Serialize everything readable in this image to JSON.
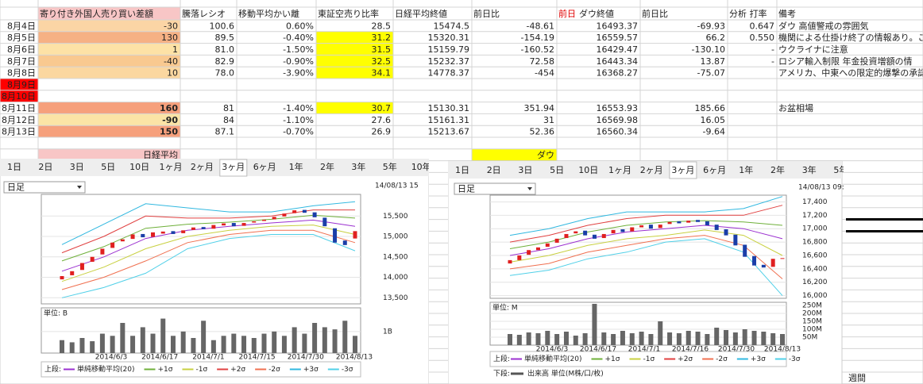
{
  "table": {
    "header": [
      {
        "text": "寄り付き外国人売り買い差額",
        "fill": "#f8c6c6",
        "color": "#e00000"
      },
      "騰落レシオ",
      "移動平均かい離",
      "東証空売り比率",
      "日経平均終値",
      "前日比",
      {
        "parts": [
          {
            "text": "前日",
            "color": "#e00000"
          },
          {
            "text": "ダウ終値"
          }
        ]
      },
      "前日比",
      "分析 打率",
      "備考"
    ],
    "rows": [
      {
        "label": "8月4日",
        "cells": [
          {
            "text": "-30",
            "fill": "#fbd5a5",
            "color": "#666666"
          },
          "100.6",
          "0.60%",
          "28.5",
          "15474.5",
          {
            "text": "-48.61",
            "color": "#1a9bc0"
          },
          "16493.37",
          {
            "text": "-69.93",
            "color": "#1a9bc0"
          },
          "0.647",
          "ダウ 高値警戒の雰囲気"
        ]
      },
      {
        "label": "8月5日",
        "cells": [
          {
            "text": "130",
            "fill": "#f6b184",
            "color": "#a00000"
          },
          "89.5",
          "-0.40%",
          {
            "text": "31.2",
            "fill": "#ffff00"
          },
          "15320.31",
          {
            "text": "-154.19",
            "color": "#1a9bc0"
          },
          "16559.57",
          {
            "text": "66.2",
            "color": "#e02020"
          },
          "0.550",
          "機関による仕掛け終了の情報あり。こ"
        ]
      },
      {
        "label": "8月6日",
        "cells": [
          {
            "text": "1",
            "fill": "#fde2a6",
            "color": "#666666"
          },
          "81.0",
          "-1.50%",
          {
            "text": "31.5",
            "fill": "#ffff00"
          },
          "15159.79",
          {
            "text": "-160.52",
            "color": "#1a9bc0"
          },
          "16429.47",
          {
            "text": "-130.10",
            "color": "#1a9bc0"
          },
          "-",
          "ウクライナに注意"
        ]
      },
      {
        "label": "8月7日",
        "cells": [
          {
            "text": "-40",
            "fill": "#f9c990",
            "color": "#666666"
          },
          "82.9",
          "-0.90%",
          {
            "text": "32.5",
            "fill": "#ffff00"
          },
          "15232.37",
          {
            "text": "72.58",
            "color": "#e02020"
          },
          "16443.34",
          {
            "text": "13.87",
            "color": "#e02020"
          },
          "-",
          "ロシア輸入制限 年金投資増額の情"
        ]
      },
      {
        "label": "8月8日",
        "cells": [
          {
            "text": "10",
            "fill": "#fbd7a0",
            "color": "#666666"
          },
          "78.0",
          "-3.90%",
          {
            "text": "34.1",
            "fill": "#ffff00"
          },
          "14778.37",
          {
            "text": "-454",
            "color": "#1a9bc0"
          },
          "16368.27",
          {
            "text": "-75.07",
            "color": "#1a9bc0"
          },
          null,
          "アメリカ、中東への限定的爆撃の承認"
        ]
      },
      {
        "label": "8月9日",
        "label_fill": "#ff0000",
        "cells": []
      },
      {
        "label": "8月10日",
        "label_fill": "#ff0000",
        "cells": []
      },
      {
        "label": "8月11日",
        "cells": [
          {
            "text": "160",
            "fill": "#f6a07c",
            "color": "#e00000",
            "bold": true
          },
          "81",
          "-1.40%",
          {
            "text": "30.7",
            "fill": "#ffff00"
          },
          "15130.31",
          {
            "text": "351.94",
            "color": "#e02020"
          },
          "16553.93",
          {
            "text": "185.66",
            "color": "#e02020"
          },
          null,
          "お盆相場"
        ]
      },
      {
        "label": "8月12日",
        "cells": [
          {
            "text": "-90",
            "fill": "#fbe4a6",
            "color": "#1a1aa0",
            "bold": true
          },
          "84",
          "-1.10%",
          "27.6",
          "15161.31",
          {
            "text": "31",
            "color": "#e02020"
          },
          "16569.98",
          {
            "text": "16.05",
            "color": "#e02020"
          }
        ]
      },
      {
        "label": "8月13日",
        "cells": [
          {
            "text": "150",
            "fill": "#f6a07c",
            "color": "#e00000",
            "bold": true
          },
          "87.1",
          "-0.70%",
          "26.9",
          "15213.67",
          {
            "text": "52.36",
            "color": "#e02020"
          },
          "16560.34",
          {
            "text": "-9.64",
            "color": "#1a9bc0"
          }
        ]
      },
      {
        "cells": []
      },
      {
        "cells": [
          {
            "text": "日経平均",
            "fill": "#f8c6c6",
            "color": "#e00000"
          },
          null,
          null,
          null,
          null,
          {
            "text": "ダウ",
            "fill": "#ffff00",
            "color": "#e00000"
          }
        ]
      }
    ]
  },
  "other_text": "週間",
  "chart_data": [
    {
      "type": "candlestick",
      "tabs": [
        {
          "label": "1日"
        },
        {
          "label": "2日"
        },
        {
          "label": "3日"
        },
        {
          "label": "5日"
        },
        {
          "label": "10日"
        },
        {
          "label": "1ヶ月"
        },
        {
          "label": "2ヶ月"
        },
        {
          "label": "3ヶ月",
          "selected": true
        },
        {
          "label": "6ヶ月"
        },
        {
          "label": "1年"
        },
        {
          "label": "2年"
        },
        {
          "label": "3年"
        },
        {
          "label": "5年"
        },
        {
          "label": "10年"
        }
      ],
      "interval": "日足",
      "timestamp": "14/08/13 15",
      "ylim": [
        13350,
        16030
      ],
      "yticks": [
        {
          "value": 15500,
          "label": "15,500"
        },
        {
          "value": 15000,
          "label": "15,000"
        },
        {
          "value": 14500,
          "label": "14,500"
        },
        {
          "value": 14000,
          "label": "14,000"
        },
        {
          "value": 13500,
          "label": "13,500"
        }
      ],
      "up_color": "#e02020",
      "down_color": "#1a3ea8",
      "open": [
        13950,
        14050,
        14180,
        14380,
        14560,
        14720,
        14880,
        14940,
        15060,
        14990,
        15070,
        15130,
        15080,
        15160,
        15230,
        15190,
        15270,
        15330,
        15260,
        15340,
        15380,
        15420,
        15490,
        15570,
        15650,
        15590,
        15460,
        15200,
        14900,
        14950
      ],
      "close": [
        14030,
        14150,
        14350,
        14500,
        14700,
        14850,
        14930,
        15050,
        14980,
        15100,
        15120,
        15060,
        15150,
        15220,
        15180,
        15280,
        15320,
        15250,
        15330,
        15370,
        15410,
        15480,
        15560,
        15640,
        15580,
        15470,
        15250,
        14850,
        14790,
        15130
      ],
      "series": [
        {
          "name": "単純移動平均(20)",
          "color": "#9b30d0",
          "values": [
            14150,
            14500,
            14950,
            15150,
            15250,
            15330,
            15400,
            15250
          ]
        },
        {
          "name": "+1σ",
          "color": "#6fb03a",
          "values": [
            14400,
            14750,
            15200,
            15300,
            15350,
            15420,
            15520,
            15450
          ]
        },
        {
          "name": "-1σ",
          "color": "#c8d040",
          "values": [
            13900,
            14250,
            14700,
            15000,
            15150,
            15250,
            15280,
            15050
          ]
        },
        {
          "name": "+2σ",
          "color": "#e04040",
          "values": [
            14600,
            15000,
            15500,
            15450,
            15450,
            15500,
            15650,
            15650
          ]
        },
        {
          "name": "-2σ",
          "color": "#f07050",
          "values": [
            13700,
            14000,
            14400,
            14850,
            15050,
            15150,
            15150,
            14850
          ]
        },
        {
          "name": "+3σ",
          "color": "#30b8e0",
          "values": [
            14800,
            15300,
            15800,
            15700,
            15600,
            15600,
            15750,
            15850
          ]
        },
        {
          "name": "-3σ",
          "color": "#50d0e8",
          "values": [
            13500,
            13750,
            14100,
            14700,
            14950,
            15050,
            15050,
            14650
          ]
        }
      ],
      "legend_prefix": "上段:",
      "volume": {
        "unit_label": "単位: B",
        "color": "#666666",
        "ylim": [
          0,
          2.1
        ],
        "yticks": [
          {
            "value": 1,
            "label": "1B"
          }
        ],
        "values": [
          0.6,
          0.5,
          0.7,
          0.55,
          0.9,
          0.8,
          1.4,
          0.8,
          1.2,
          0.9,
          1.6,
          0.8,
          1.0,
          0.7,
          1.5,
          0.6,
          0.8,
          0.9,
          0.8,
          0.7,
          0.9,
          1.0,
          0.8,
          1.2,
          0.9,
          1.4,
          1.2,
          1.1,
          1.5,
          0.8
        ]
      },
      "x_labels": [
        "2014/6/3",
        "2014/6/17",
        "2014/7/1",
        "2014/7/15",
        "2014/7/30",
        "2014/8/13"
      ]
    },
    {
      "type": "candlestick",
      "tabs": [
        {
          "label": "1日"
        },
        {
          "label": "2日"
        },
        {
          "label": "3日"
        },
        {
          "label": "5日"
        },
        {
          "label": "10日"
        },
        {
          "label": "1ヶ月"
        },
        {
          "label": "2ヶ月"
        },
        {
          "label": "3ヶ月",
          "selected": true
        },
        {
          "label": "6ヶ月"
        },
        {
          "label": "1年"
        },
        {
          "label": "2年"
        },
        {
          "label": "3年"
        },
        {
          "label": "5年"
        },
        {
          "label": "10年"
        }
      ],
      "interval": "日足",
      "timestamp": "14/08/13 09:3",
      "ylim": [
        15960,
        17500
      ],
      "yticks": [
        {
          "value": 17400,
          "label": "17,400"
        },
        {
          "value": 17200,
          "label": "17,200"
        },
        {
          "value": 17000,
          "label": "17,000"
        },
        {
          "value": 16800,
          "label": "16,800"
        },
        {
          "value": 16600,
          "label": "16,600"
        },
        {
          "value": 16400,
          "label": "16,400"
        },
        {
          "value": 16200,
          "label": "16,200"
        },
        {
          "value": 16000,
          "label": "16,000"
        }
      ],
      "up_color": "#e02020",
      "down_color": "#1a3ea8",
      "open": [
        16480,
        16530,
        16610,
        16680,
        16730,
        16790,
        16860,
        16930,
        16970,
        16910,
        16860,
        16930,
        16990,
        16960,
        17020,
        17060,
        17010,
        17070,
        17110,
        17090,
        17130,
        17110,
        17060,
        16990,
        16910,
        16760,
        16590,
        16460,
        16430,
        16560
      ],
      "close": [
        16530,
        16600,
        16680,
        16720,
        16780,
        16850,
        16920,
        16960,
        16900,
        16850,
        16920,
        16980,
        16950,
        17020,
        17050,
        17000,
        17060,
        17100,
        17080,
        17120,
        17100,
        17050,
        16980,
        16900,
        16750,
        16580,
        16450,
        16420,
        16550,
        16560
      ],
      "series": [
        {
          "name": "単純移動平均(20)",
          "color": "#9b30d0",
          "values": [
            16600,
            16700,
            16850,
            16950,
            17000,
            17050,
            17000,
            16850
          ]
        },
        {
          "name": "+1σ",
          "color": "#6fb03a",
          "values": [
            16700,
            16800,
            16950,
            17050,
            17100,
            17120,
            17100,
            17050
          ]
        },
        {
          "name": "-1σ",
          "color": "#c8d040",
          "values": [
            16500,
            16600,
            16750,
            16850,
            16900,
            16980,
            16900,
            16600
          ]
        },
        {
          "name": "+2σ",
          "color": "#e04040",
          "values": [
            16800,
            16900,
            17050,
            17150,
            17200,
            17200,
            17200,
            17350
          ]
        },
        {
          "name": "-2σ",
          "color": "#f07050",
          "values": [
            16400,
            16480,
            16650,
            16750,
            16850,
            16900,
            16750,
            16250
          ]
        },
        {
          "name": "+3σ",
          "color": "#30b8e0",
          "values": [
            16900,
            17000,
            17150,
            17250,
            17250,
            17250,
            17300,
            17480
          ]
        },
        {
          "name": "-3σ",
          "color": "#50d0e8",
          "values": [
            16300,
            16380,
            16550,
            16650,
            16800,
            16850,
            16650,
            16000
          ]
        }
      ],
      "legend_prefix": "上段:",
      "lower_legend": {
        "prefix": "下段:",
        "text": "出来高 単位(M株/口/枚)",
        "color": "#555555"
      },
      "volume": {
        "unit_label": "単位: M",
        "color": "#666666",
        "ylim": [
          0,
          270
        ],
        "yticks": [
          {
            "value": 250,
            "label": "250M"
          },
          {
            "value": 200,
            "label": "200M"
          },
          {
            "value": 150,
            "label": "150M"
          },
          {
            "value": 100,
            "label": "100M"
          },
          {
            "value": 50,
            "label": "50M"
          }
        ],
        "values": [
          70,
          65,
          80,
          75,
          90,
          70,
          85,
          60,
          75,
          260,
          80,
          70,
          90,
          75,
          85,
          70,
          150,
          80,
          75,
          90,
          85,
          70,
          110,
          95,
          80,
          100,
          90,
          85,
          75,
          70
        ]
      },
      "x_labels": [
        "2014/6/3",
        "2014/6/17",
        "2014/7/1",
        "2014/7/16",
        "2014/7/30",
        "2014/8/13"
      ]
    }
  ]
}
